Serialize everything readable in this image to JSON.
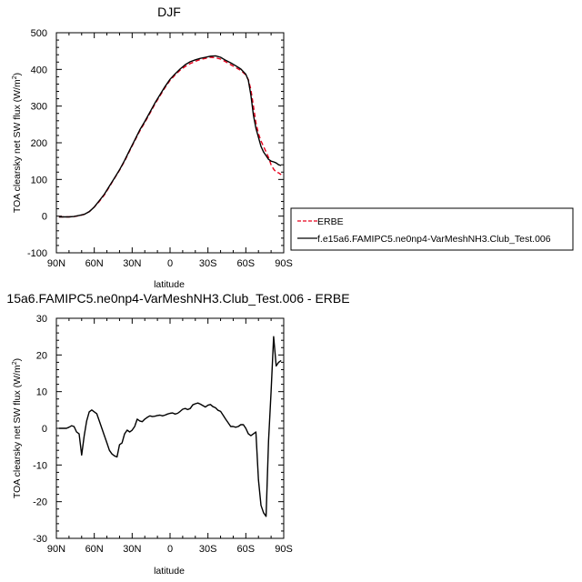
{
  "colors": {
    "model": "#000000",
    "obs": "#e8001c"
  },
  "chart_data": [
    {
      "type": "line",
      "title": "DJF",
      "xlabel": "latitude",
      "ylabel": "TOA clearsky net SW flux (W/m",
      "ylabel_sup": "2",
      "ylabel_close": ")",
      "xlim": [
        90,
        -90
      ],
      "ylim": [
        -100,
        500
      ],
      "xticks": [
        90,
        60,
        30,
        0,
        -30,
        -60,
        -90
      ],
      "xtick_labels": [
        "90N",
        "60N",
        "30N",
        "0",
        "30S",
        "60S",
        "90S"
      ],
      "yticks": [
        -100,
        0,
        100,
        200,
        300,
        400,
        500
      ],
      "ytick_labels": [
        "-100",
        "0",
        "100",
        "200",
        "300",
        "400",
        "500"
      ],
      "legend_position": "right-bottom",
      "series": [
        {
          "name": "ERBE",
          "style": "dashed",
          "x": [
            88,
            84,
            80,
            76,
            72,
            68,
            64,
            60,
            56,
            52,
            48,
            44,
            40,
            36,
            32,
            28,
            24,
            20,
            16,
            12,
            8,
            4,
            0,
            -4,
            -8,
            -12,
            -16,
            -20,
            -24,
            -28,
            -32,
            -36,
            -40,
            -44,
            -48,
            -52,
            -56,
            -60,
            -62,
            -64,
            -66,
            -68,
            -70,
            -72,
            -74,
            -76,
            -78,
            -80,
            -82,
            -84,
            -86,
            -88
          ],
          "y": [
            -2,
            -2,
            -2,
            -1,
            1,
            5,
            12,
            25,
            40,
            58,
            80,
            103,
            125,
            150,
            178,
            205,
            232,
            255,
            280,
            305,
            328,
            350,
            370,
            385,
            398,
            408,
            416,
            422,
            427,
            430,
            433,
            432,
            428,
            421,
            413,
            405,
            397,
            385,
            372,
            345,
            300,
            255,
            225,
            205,
            190,
            175,
            160,
            140,
            128,
            120,
            118,
            113
          ]
        },
        {
          "name": "f.e15a6.FAMIPC5.ne0np4-VarMeshNH3.Club_Test.006",
          "style": "solid",
          "x": [
            88,
            84,
            80,
            76,
            72,
            68,
            64,
            60,
            56,
            52,
            48,
            44,
            40,
            36,
            32,
            28,
            24,
            20,
            16,
            12,
            8,
            4,
            0,
            -4,
            -8,
            -12,
            -16,
            -20,
            -24,
            -28,
            -32,
            -36,
            -40,
            -44,
            -48,
            -52,
            -56,
            -60,
            -62,
            -64,
            -66,
            -68,
            -70,
            -72,
            -74,
            -76,
            -78,
            -80,
            -82,
            -84,
            -86,
            -88
          ],
          "y": [
            -2,
            -2,
            -2,
            -1,
            2,
            5,
            12,
            25,
            42,
            60,
            82,
            104,
            126,
            152,
            180,
            207,
            235,
            258,
            283,
            308,
            331,
            353,
            373,
            388,
            401,
            413,
            421,
            426,
            430,
            433,
            436,
            437,
            433,
            425,
            418,
            410,
            401,
            387,
            370,
            330,
            275,
            240,
            215,
            190,
            175,
            165,
            155,
            150,
            148,
            145,
            140,
            138
          ]
        }
      ]
    },
    {
      "type": "line",
      "title": "15a6.FAMIPC5.ne0np4-VarMeshNH3.Club_Test.006 - ERBE",
      "xlabel": "latitude",
      "ylabel": "TOA clearsky net SW flux (W/m",
      "ylabel_sup": "2",
      "ylabel_close": ")",
      "xlim": [
        90,
        -90
      ],
      "ylim": [
        -30,
        30
      ],
      "xticks": [
        90,
        60,
        30,
        0,
        -30,
        -60,
        -90
      ],
      "xtick_labels": [
        "90N",
        "60N",
        "30N",
        "0",
        "30S",
        "60S",
        "90S"
      ],
      "yticks": [
        -30,
        -20,
        -10,
        0,
        10,
        20,
        30
      ],
      "ytick_labels": [
        "-30",
        "-20",
        "-10",
        "0",
        "10",
        "20",
        "30"
      ],
      "series": [
        {
          "style": "solid",
          "x": [
            88,
            86,
            84,
            82,
            80,
            78,
            76,
            74,
            72,
            70,
            68,
            66,
            64,
            62,
            60,
            58,
            56,
            54,
            52,
            50,
            48,
            46,
            44,
            42,
            40,
            38,
            36,
            34,
            32,
            30,
            28,
            26,
            24,
            22,
            20,
            18,
            16,
            14,
            12,
            10,
            8,
            6,
            4,
            2,
            0,
            -2,
            -4,
            -6,
            -8,
            -10,
            -12,
            -14,
            -16,
            -18,
            -20,
            -22,
            -24,
            -26,
            -28,
            -30,
            -32,
            -34,
            -36,
            -38,
            -40,
            -42,
            -44,
            -46,
            -48,
            -50,
            -52,
            -54,
            -56,
            -58,
            -60,
            -62,
            -64,
            -66,
            -68,
            -70,
            -72,
            -74,
            -76,
            -78,
            -80,
            -82,
            -84,
            -86,
            -88
          ],
          "y": [
            0,
            0,
            0,
            0,
            0.3,
            0.7,
            0.5,
            -1,
            -1.5,
            -7.3,
            -2,
            2,
            4.5,
            5,
            4.5,
            4,
            2,
            0,
            -2,
            -4,
            -6,
            -7,
            -7.5,
            -7.8,
            -4.5,
            -4,
            -1.5,
            -0.5,
            -1,
            -0.5,
            0.5,
            2.5,
            2,
            1.8,
            2.5,
            3,
            3.4,
            3.2,
            3.3,
            3.5,
            3.6,
            3.4,
            3.6,
            3.9,
            4.1,
            4.2,
            3.9,
            4.1,
            4.6,
            5.2,
            5.4,
            5.1,
            5.4,
            6.4,
            6.7,
            6.9,
            6.6,
            6.2,
            5.8,
            6.3,
            6.5,
            5.9,
            5.6,
            4.9,
            4.6,
            3.6,
            2.5,
            1.5,
            0.5,
            0.5,
            0.3,
            0.5,
            1,
            1,
            0,
            -1.5,
            -2,
            -1.5,
            -1,
            -14,
            -21,
            -23,
            -24,
            -3.5,
            10,
            25,
            17,
            18,
            18.5
          ]
        }
      ]
    }
  ]
}
